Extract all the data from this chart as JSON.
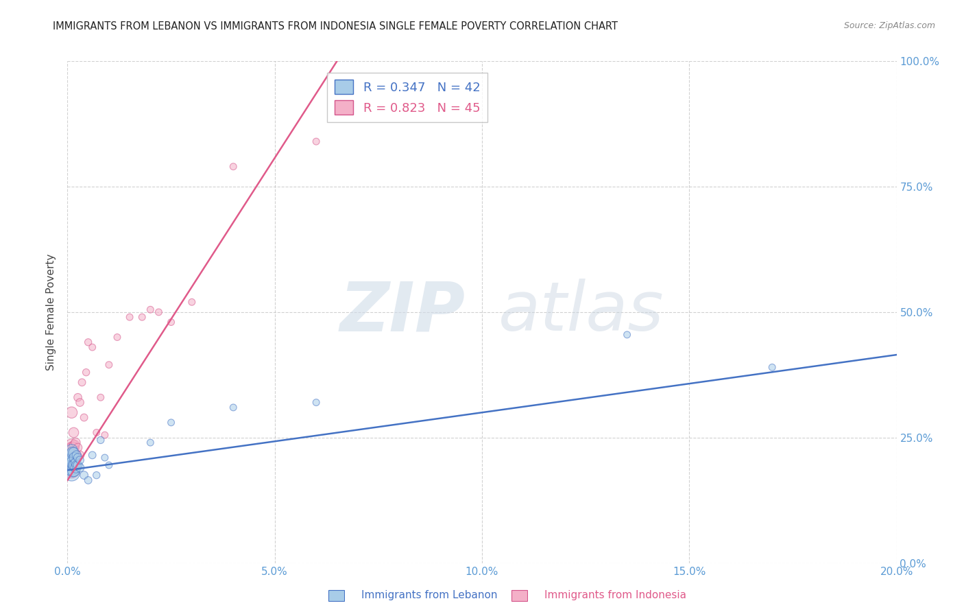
{
  "title": "IMMIGRANTS FROM LEBANON VS IMMIGRANTS FROM INDONESIA SINGLE FEMALE POVERTY CORRELATION CHART",
  "source": "Source: ZipAtlas.com",
  "ylabel": "Single Female Poverty",
  "xlabel_ticks": [
    "0.0%",
    "5.0%",
    "10.0%",
    "15.0%",
    "20.0%"
  ],
  "xlabel_vals": [
    0.0,
    0.05,
    0.1,
    0.15,
    0.2
  ],
  "ylabel_ticks": [
    "0.0%",
    "25.0%",
    "50.0%",
    "75.0%",
    "100.0%"
  ],
  "ylabel_vals": [
    0.0,
    0.25,
    0.5,
    0.75,
    1.0
  ],
  "xlim": [
    0.0,
    0.2
  ],
  "ylim": [
    0.0,
    1.0
  ],
  "watermark_zip": "ZIP",
  "watermark_atlas": "atlas",
  "lebanon_R": 0.347,
  "lebanon_N": 42,
  "indonesia_R": 0.823,
  "indonesia_N": 45,
  "lebanon_color": "#a8cce8",
  "indonesia_color": "#f4b0c8",
  "lebanon_line_color": "#4472c4",
  "indonesia_line_color": "#e05a8a",
  "lebanon_edge_color": "#4472c4",
  "indonesia_edge_color": "#d4548a",
  "lebanon_x": [
    0.0003,
    0.0003,
    0.0005,
    0.0005,
    0.0007,
    0.0007,
    0.0008,
    0.0008,
    0.001,
    0.001,
    0.001,
    0.001,
    0.001,
    0.0012,
    0.0012,
    0.0012,
    0.0015,
    0.0015,
    0.0015,
    0.0017,
    0.0017,
    0.002,
    0.002,
    0.0022,
    0.0022,
    0.0025,
    0.0025,
    0.003,
    0.003,
    0.004,
    0.005,
    0.006,
    0.007,
    0.008,
    0.009,
    0.01,
    0.02,
    0.025,
    0.04,
    0.06,
    0.135,
    0.17
  ],
  "lebanon_y": [
    0.195,
    0.205,
    0.19,
    0.2,
    0.185,
    0.21,
    0.19,
    0.2,
    0.18,
    0.19,
    0.2,
    0.215,
    0.225,
    0.185,
    0.2,
    0.22,
    0.185,
    0.195,
    0.22,
    0.195,
    0.21,
    0.19,
    0.2,
    0.195,
    0.215,
    0.195,
    0.21,
    0.19,
    0.205,
    0.175,
    0.165,
    0.215,
    0.175,
    0.245,
    0.21,
    0.195,
    0.24,
    0.28,
    0.31,
    0.32,
    0.455,
    0.39
  ],
  "lebanon_size": [
    200,
    180,
    160,
    140,
    120,
    110,
    100,
    90,
    300,
    260,
    220,
    180,
    150,
    200,
    170,
    140,
    180,
    150,
    120,
    140,
    120,
    120,
    100,
    100,
    90,
    90,
    80,
    80,
    70,
    70,
    60,
    60,
    55,
    55,
    50,
    50,
    50,
    50,
    50,
    50,
    50,
    50
  ],
  "indonesia_x": [
    0.0003,
    0.0003,
    0.0005,
    0.0005,
    0.0007,
    0.0007,
    0.0008,
    0.0008,
    0.001,
    0.001,
    0.001,
    0.001,
    0.001,
    0.0012,
    0.0012,
    0.0015,
    0.0015,
    0.0015,
    0.0017,
    0.0017,
    0.002,
    0.002,
    0.0022,
    0.0025,
    0.0025,
    0.003,
    0.003,
    0.0035,
    0.004,
    0.0045,
    0.005,
    0.006,
    0.007,
    0.008,
    0.009,
    0.01,
    0.012,
    0.015,
    0.018,
    0.02,
    0.022,
    0.025,
    0.03,
    0.04,
    0.06
  ],
  "indonesia_y": [
    0.195,
    0.21,
    0.2,
    0.22,
    0.205,
    0.23,
    0.195,
    0.225,
    0.185,
    0.2,
    0.215,
    0.235,
    0.3,
    0.205,
    0.23,
    0.2,
    0.23,
    0.26,
    0.21,
    0.235,
    0.215,
    0.24,
    0.215,
    0.23,
    0.33,
    0.215,
    0.32,
    0.36,
    0.29,
    0.38,
    0.44,
    0.43,
    0.26,
    0.33,
    0.255,
    0.395,
    0.45,
    0.49,
    0.49,
    0.505,
    0.5,
    0.48,
    0.52,
    0.79,
    0.84
  ],
  "indonesia_size": [
    200,
    170,
    160,
    140,
    120,
    110,
    100,
    90,
    280,
    240,
    200,
    170,
    140,
    180,
    150,
    160,
    130,
    110,
    130,
    110,
    110,
    90,
    90,
    80,
    70,
    80,
    70,
    60,
    60,
    55,
    55,
    50,
    50,
    50,
    50,
    50,
    50,
    50,
    50,
    50,
    50,
    50,
    50,
    50,
    50
  ],
  "lb_line_x0": 0.0,
  "lb_line_y0": 0.185,
  "lb_line_x1": 0.2,
  "lb_line_y1": 0.415,
  "id_line_x0": 0.0,
  "id_line_y0": 0.165,
  "id_line_x1": 0.065,
  "id_line_y1": 1.0
}
